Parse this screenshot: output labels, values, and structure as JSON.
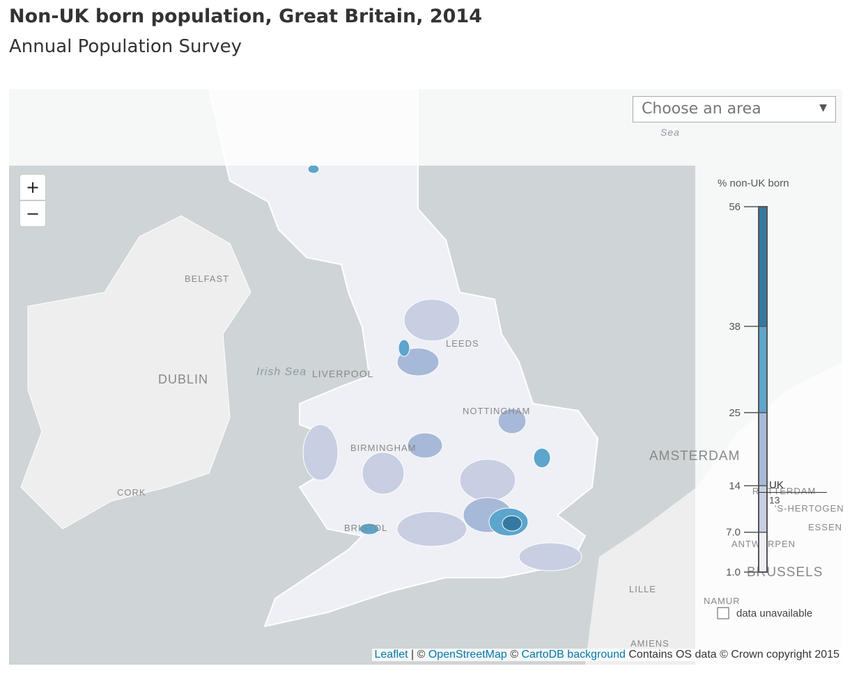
{
  "header": {
    "title": "Non-UK born population, Great Britain, 2014",
    "subtitle": "Annual Population Survey"
  },
  "dropdown": {
    "placeholder": "Choose an area",
    "arrow": "▼"
  },
  "zoom": {
    "in": "+",
    "out": "−"
  },
  "map_labels": [
    "BELFAST",
    "DUBLIN",
    "CORK",
    "Irish Sea",
    "LIVERPOOL",
    "LEEDS",
    "NOTTINGHAM",
    "BIRMINGHAM",
    "BRISTOL",
    "AMSTERDAM",
    "ROTTERDAM",
    "'S-HERTOGEN",
    "ANTWERPEN",
    "ESSEN",
    "BRUSSELS",
    "LILLE",
    "NAMUR",
    "AMIENS",
    "Sea"
  ],
  "legend": {
    "title": "% non-UK born",
    "ylim": [
      1,
      56
    ],
    "ticks": [
      56,
      38,
      25,
      14,
      {
        "value": 7,
        "label": "7.0"
      },
      {
        "value": 1,
        "label": "1.0"
      }
    ],
    "colors": [
      "#3579a1",
      "#5ca5cc",
      "#a7b9d8",
      "#c8cfe3",
      "#eeeef5"
    ],
    "uk": {
      "label": "UK",
      "value": 13
    },
    "unavailable": "data unavailable"
  },
  "attribution": {
    "leaflet": "Leaflet",
    "sep1": "| ©",
    "osm": "OpenStreetMap",
    "sep2": "©",
    "carto": "CartoDB background",
    "os": "Contains OS data © Crown copyright 2015"
  }
}
